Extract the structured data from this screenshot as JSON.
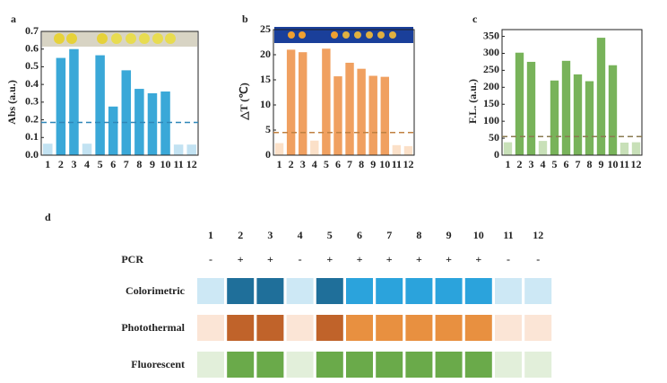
{
  "chart_data": [
    {
      "type": "bar",
      "label": "a",
      "ylabel": "Abs (a.u.)",
      "categories": [
        "1",
        "2",
        "3",
        "4",
        "5",
        "6",
        "7",
        "8",
        "9",
        "10",
        "11",
        "12"
      ],
      "values": [
        0.065,
        0.55,
        0.6,
        0.065,
        0.565,
        0.275,
        0.48,
        0.375,
        0.35,
        0.36,
        0.06,
        0.06
      ],
      "colors": [
        "#c2e2f2",
        "#3aa8d8",
        "#3aa8d8",
        "#c2e2f2",
        "#3aa8d8",
        "#3aa8d8",
        "#3aa8d8",
        "#3aa8d8",
        "#3aa8d8",
        "#3aa8d8",
        "#c2e2f2",
        "#c2e2f2"
      ],
      "threshold": 0.185,
      "threshold_color": "#2e86b8",
      "ylim": [
        0,
        0.7
      ],
      "yticks": [
        {
          "value": 0,
          "label": "0.0"
        },
        0.1,
        0.2,
        0.3,
        0.4,
        0.5,
        0.6,
        0.7
      ]
    },
    {
      "type": "bar",
      "label": "b",
      "ylabel": "△T (℃)",
      "categories": [
        "1",
        "2",
        "3",
        "4",
        "5",
        "6",
        "7",
        "8",
        "9",
        "10",
        "11",
        "12"
      ],
      "values": [
        2.4,
        21,
        20.5,
        2.9,
        21.2,
        15.7,
        18.4,
        17.2,
        15.8,
        15.6,
        2.0,
        1.8
      ],
      "colors": [
        "#fbe0c8",
        "#f0a060",
        "#f0a060",
        "#fbe0c8",
        "#f0a060",
        "#f0a060",
        "#f0a060",
        "#f0a060",
        "#f0a060",
        "#f0a060",
        "#fbe0c8",
        "#fbe0c8"
      ],
      "threshold": 4.5,
      "threshold_color": "#c08040",
      "ylim": [
        0,
        25
      ],
      "yticks": [
        0,
        5,
        10,
        15,
        20,
        25
      ]
    },
    {
      "type": "bar",
      "label": "c",
      "ylabel": "F.L. (a.u.)",
      "categories": [
        "1",
        "2",
        "3",
        "4",
        "5",
        "6",
        "7",
        "8",
        "9",
        "10",
        "11",
        "12"
      ],
      "values": [
        38,
        302,
        275,
        42,
        220,
        278,
        238,
        218,
        346,
        265,
        37,
        38
      ],
      "colors": [
        "#c8e0b8",
        "#78b35a",
        "#78b35a",
        "#c8e0b8",
        "#78b35a",
        "#78b35a",
        "#78b35a",
        "#78b35a",
        "#78b35a",
        "#78b35a",
        "#c8e0b8",
        "#c8e0b8"
      ],
      "threshold": 55,
      "threshold_color": "#8a7a50",
      "ylim": [
        0,
        370
      ],
      "yticks": [
        0,
        50,
        100,
        150,
        200,
        250,
        300,
        350
      ]
    }
  ],
  "panel_d": {
    "label": "d",
    "columns": [
      "1",
      "2",
      "3",
      "4",
      "5",
      "6",
      "7",
      "8",
      "9",
      "10",
      "11",
      "12"
    ],
    "pcr_label": "PCR",
    "pcr": [
      "-",
      "+",
      "+",
      "-",
      "+",
      "+",
      "+",
      "+",
      "+",
      "+",
      "-",
      "-"
    ],
    "rows": [
      {
        "name": "Colorimetric",
        "colors": [
          "#cde8f5",
          "#1f6f9a",
          "#1f6f9a",
          "#cde8f5",
          "#1f6f9a",
          "#2ba3dc",
          "#2ba3dc",
          "#2ba3dc",
          "#2ba3dc",
          "#2ba3dc",
          "#cde8f5",
          "#cde8f5"
        ]
      },
      {
        "name": "Photothermal",
        "colors": [
          "#fbe5d6",
          "#c0632a",
          "#c0632a",
          "#fbe5d6",
          "#c0632a",
          "#e89040",
          "#e89040",
          "#e89040",
          "#e89040",
          "#e89040",
          "#fbe5d6",
          "#fbe5d6"
        ]
      },
      {
        "name": "Fluorescent",
        "colors": [
          "#e2efda",
          "#6aaa4a",
          "#6aaa4a",
          "#e2efda",
          "#6aaa4a",
          "#6aaa4a",
          "#6aaa4a",
          "#6aaa4a",
          "#6aaa4a",
          "#6aaa4a",
          "#e2efda",
          "#e2efda"
        ]
      }
    ]
  }
}
